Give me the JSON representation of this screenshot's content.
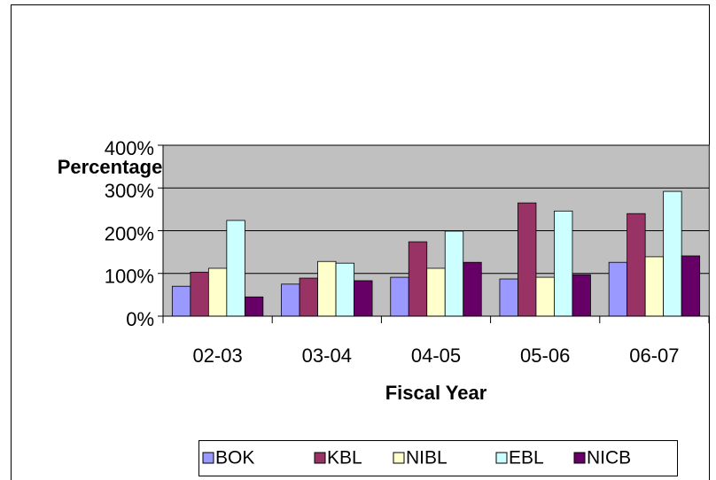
{
  "chart_data": {
    "type": "bar",
    "y_label": "Percentage",
    "x_label": "Fiscal Year",
    "categories": [
      "02-03",
      "03-04",
      "04-05",
      "05-06",
      "06-07"
    ],
    "series": [
      {
        "name": "BOK",
        "color": "#9999ff",
        "values": [
          70,
          75,
          91,
          87,
          126
        ]
      },
      {
        "name": "KBL",
        "color": "#993366",
        "values": [
          103,
          89,
          174,
          265,
          240
        ]
      },
      {
        "name": "NIBL",
        "color": "#ffffcc",
        "values": [
          112,
          128,
          112,
          91,
          139
        ]
      },
      {
        "name": "EBL",
        "color": "#ccffff",
        "values": [
          224,
          124,
          199,
          246,
          292
        ]
      },
      {
        "name": "NICB",
        "color": "#660066",
        "values": [
          45,
          83,
          126,
          97,
          141
        ]
      }
    ],
    "ylim": [
      0,
      400
    ],
    "yticks": [
      {
        "value": 0,
        "label": "0%"
      },
      {
        "value": 100,
        "label": "100%"
      },
      {
        "value": 200,
        "label": "200%"
      },
      {
        "value": 300,
        "label": "300%"
      },
      {
        "value": 400,
        "label": "400%"
      }
    ],
    "grid": true,
    "legend": "bottom"
  }
}
